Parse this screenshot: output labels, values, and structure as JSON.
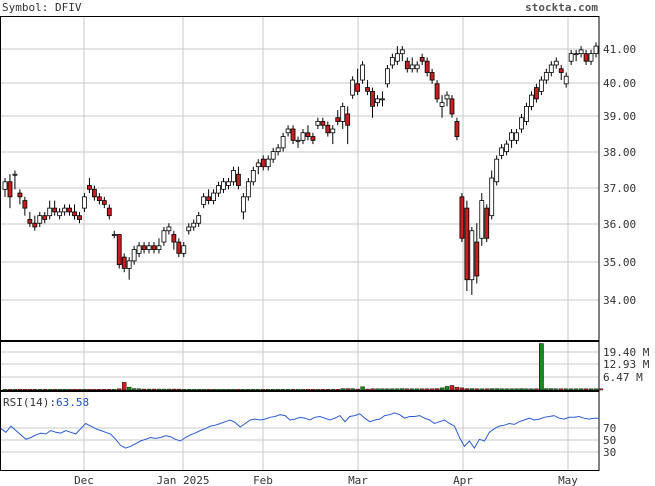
{
  "header": {
    "symbol_label": "Symbol: DFIV",
    "site": "stockta.com"
  },
  "rsi": {
    "label": "RSI(14):",
    "value": "63.58",
    "ticks": [
      "70",
      "50",
      "30"
    ]
  },
  "volume": {
    "ticks": [
      "19.40 M",
      "12.93 M",
      "6.47 M"
    ]
  },
  "colors": {
    "up": "#ffffff",
    "down": "#c81e1e",
    "vol_up": "#1a8a1a",
    "rsi_line": "#2a5bd7",
    "grid": "#c8c8c8"
  },
  "chart_data": {
    "type": "candlestick",
    "x_ticks": [
      "Dec",
      "Jan 2025",
      "Feb",
      "Mar",
      "Apr",
      "May"
    ],
    "y_ticks": [
      "41.00",
      "40.00",
      "39.00",
      "38.00",
      "37.00",
      "36.00",
      "35.00",
      "34.00"
    ],
    "ylim": [
      33.0,
      41.6
    ],
    "candles": [
      [
        37.0,
        37.3,
        36.8,
        37.2
      ],
      [
        37.2,
        37.4,
        36.5,
        36.8
      ],
      [
        37.4,
        37.5,
        37.0,
        37.4
      ],
      [
        36.9,
        37.0,
        36.6,
        36.8
      ],
      [
        36.7,
        36.8,
        36.3,
        36.5
      ],
      [
        36.2,
        36.4,
        36.0,
        36.1
      ],
      [
        36.1,
        36.3,
        35.9,
        36.0
      ],
      [
        36.1,
        36.4,
        36.0,
        36.3
      ],
      [
        36.3,
        36.4,
        36.1,
        36.2
      ],
      [
        36.3,
        36.7,
        36.2,
        36.5
      ],
      [
        36.5,
        36.7,
        36.3,
        36.4
      ],
      [
        36.3,
        36.5,
        36.2,
        36.4
      ],
      [
        36.4,
        36.6,
        36.3,
        36.5
      ],
      [
        36.5,
        36.6,
        36.3,
        36.4
      ],
      [
        36.4,
        36.6,
        36.2,
        36.3
      ],
      [
        36.3,
        36.4,
        36.1,
        36.2
      ],
      [
        36.5,
        36.9,
        36.4,
        36.8
      ],
      [
        37.1,
        37.3,
        36.9,
        37.0
      ],
      [
        37.0,
        37.1,
        36.7,
        36.8
      ],
      [
        36.8,
        36.9,
        36.6,
        36.7
      ],
      [
        36.7,
        36.8,
        36.5,
        36.6
      ],
      [
        36.5,
        36.6,
        36.2,
        36.3
      ],
      [
        35.8,
        35.9,
        35.7,
        35.8
      ],
      [
        35.8,
        35.8,
        34.9,
        35.0
      ],
      [
        35.2,
        35.3,
        34.8,
        34.9
      ],
      [
        34.9,
        35.2,
        34.6,
        35.1
      ],
      [
        35.1,
        35.5,
        35.0,
        35.4
      ],
      [
        35.3,
        35.6,
        35.2,
        35.5
      ],
      [
        35.5,
        35.6,
        35.3,
        35.4
      ],
      [
        35.4,
        35.6,
        35.3,
        35.5
      ],
      [
        35.5,
        35.6,
        35.3,
        35.4
      ],
      [
        35.4,
        35.7,
        35.3,
        35.5
      ],
      [
        35.6,
        36.0,
        35.5,
        35.9
      ],
      [
        35.9,
        36.1,
        35.8,
        36.0
      ],
      [
        35.8,
        35.9,
        35.4,
        35.6
      ],
      [
        35.6,
        35.7,
        35.2,
        35.3
      ],
      [
        35.3,
        35.6,
        35.2,
        35.5
      ],
      [
        35.9,
        36.1,
        35.8,
        36.0
      ],
      [
        36.0,
        36.2,
        35.9,
        36.1
      ],
      [
        36.1,
        36.4,
        36.0,
        36.3
      ],
      [
        36.6,
        36.9,
        36.5,
        36.8
      ],
      [
        36.8,
        37.0,
        36.6,
        36.7
      ],
      [
        36.7,
        37.0,
        36.6,
        36.9
      ],
      [
        36.9,
        37.2,
        36.8,
        37.1
      ],
      [
        37.0,
        37.3,
        36.9,
        37.2
      ],
      [
        37.1,
        37.3,
        37.0,
        37.2
      ],
      [
        37.2,
        37.6,
        37.1,
        37.5
      ],
      [
        37.4,
        37.6,
        37.0,
        37.1
      ],
      [
        36.4,
        36.9,
        36.2,
        36.8
      ],
      [
        36.8,
        37.3,
        36.7,
        37.2
      ],
      [
        37.2,
        37.6,
        37.1,
        37.5
      ],
      [
        37.6,
        37.8,
        37.4,
        37.7
      ],
      [
        37.8,
        37.9,
        37.5,
        37.6
      ],
      [
        37.6,
        37.9,
        37.5,
        37.8
      ],
      [
        37.8,
        38.1,
        37.7,
        38.0
      ],
      [
        38.0,
        38.2,
        37.9,
        38.1
      ],
      [
        38.1,
        38.5,
        38.0,
        38.4
      ],
      [
        38.5,
        38.7,
        38.4,
        38.6
      ],
      [
        38.6,
        38.7,
        38.2,
        38.3
      ],
      [
        38.3,
        38.4,
        38.1,
        38.3
      ],
      [
        38.3,
        38.6,
        38.2,
        38.5
      ],
      [
        38.5,
        38.7,
        38.3,
        38.4
      ],
      [
        38.4,
        38.5,
        38.2,
        38.3
      ],
      [
        38.7,
        38.9,
        38.6,
        38.8
      ],
      [
        38.8,
        38.9,
        38.6,
        38.7
      ],
      [
        38.7,
        38.8,
        38.4,
        38.5
      ],
      [
        38.5,
        38.7,
        38.2,
        38.6
      ],
      [
        38.9,
        39.1,
        38.7,
        38.8
      ],
      [
        38.8,
        39.3,
        38.6,
        39.2
      ],
      [
        39.0,
        39.2,
        38.2,
        38.7
      ],
      [
        39.5,
        40.0,
        39.4,
        39.9
      ],
      [
        39.8,
        40.2,
        39.5,
        39.6
      ],
      [
        39.9,
        40.4,
        39.8,
        40.3
      ],
      [
        39.7,
        39.9,
        39.5,
        39.6
      ],
      [
        39.6,
        39.7,
        38.9,
        39.2
      ],
      [
        39.3,
        39.5,
        39.2,
        39.4
      ],
      [
        39.4,
        39.6,
        39.2,
        39.4
      ],
      [
        39.8,
        40.3,
        39.7,
        40.2
      ],
      [
        40.3,
        40.6,
        40.2,
        40.5
      ],
      [
        40.4,
        40.8,
        40.3,
        40.6
      ],
      [
        40.6,
        40.8,
        40.4,
        40.7
      ],
      [
        40.4,
        40.5,
        40.1,
        40.2
      ],
      [
        40.2,
        40.5,
        40.1,
        40.3
      ],
      [
        40.2,
        40.4,
        40.1,
        40.3
      ],
      [
        40.5,
        40.6,
        40.3,
        40.4
      ],
      [
        40.4,
        40.5,
        40.0,
        40.1
      ],
      [
        40.1,
        40.2,
        39.8,
        39.9
      ],
      [
        39.8,
        39.9,
        39.3,
        39.4
      ],
      [
        39.2,
        39.5,
        38.9,
        39.3
      ],
      [
        39.4,
        39.6,
        39.2,
        39.5
      ],
      [
        39.4,
        39.5,
        38.9,
        39.0
      ],
      [
        38.8,
        38.9,
        38.3,
        38.4
      ],
      [
        36.8,
        36.9,
        35.6,
        35.7
      ],
      [
        36.5,
        36.7,
        34.3,
        34.6
      ],
      [
        34.6,
        36.0,
        34.2,
        35.9
      ],
      [
        35.6,
        36.1,
        34.5,
        34.7
      ],
      [
        35.7,
        36.9,
        35.5,
        36.7
      ],
      [
        36.5,
        36.6,
        35.6,
        35.7
      ],
      [
        36.3,
        37.5,
        36.2,
        37.3
      ],
      [
        37.2,
        37.9,
        37.1,
        37.8
      ],
      [
        37.9,
        38.2,
        37.8,
        38.1
      ],
      [
        38.0,
        38.3,
        37.9,
        38.2
      ],
      [
        38.3,
        38.6,
        38.1,
        38.5
      ],
      [
        38.3,
        38.6,
        38.2,
        38.5
      ],
      [
        38.6,
        39.0,
        38.5,
        38.9
      ],
      [
        38.8,
        39.3,
        38.7,
        39.2
      ],
      [
        39.2,
        39.6,
        39.1,
        39.5
      ],
      [
        39.7,
        39.8,
        39.3,
        39.4
      ],
      [
        39.6,
        40.0,
        39.5,
        39.9
      ],
      [
        39.9,
        40.2,
        39.8,
        40.1
      ],
      [
        40.1,
        40.4,
        40.0,
        40.3
      ],
      [
        40.3,
        40.5,
        40.2,
        40.4
      ],
      [
        40.2,
        40.3,
        39.9,
        40.1
      ],
      [
        39.8,
        40.1,
        39.7,
        40.0
      ],
      [
        40.4,
        40.7,
        40.3,
        40.6
      ],
      [
        40.6,
        40.7,
        40.4,
        40.6
      ],
      [
        40.6,
        40.8,
        40.5,
        40.7
      ],
      [
        40.6,
        40.7,
        40.3,
        40.4
      ],
      [
        40.4,
        40.7,
        40.3,
        40.6
      ],
      [
        40.6,
        40.9,
        40.5,
        40.8
      ]
    ],
    "volumes": [
      0.3,
      0.3,
      0.3,
      0.35,
      0.3,
      0.3,
      0.3,
      0.3,
      0.3,
      0.3,
      0.35,
      0.3,
      0.3,
      0.3,
      0.3,
      0.3,
      0.3,
      0.3,
      0.3,
      0.3,
      0.3,
      0.3,
      0.3,
      0.5,
      3.2,
      1.2,
      0.6,
      0.5,
      0.4,
      0.4,
      0.4,
      0.4,
      0.4,
      0.4,
      0.4,
      0.4,
      0.3,
      0.3,
      0.3,
      0.3,
      0.3,
      0.3,
      0.3,
      0.3,
      0.3,
      0.3,
      0.3,
      0.3,
      0.3,
      0.3,
      0.3,
      0.3,
      0.3,
      0.3,
      0.3,
      0.3,
      0.3,
      0.3,
      0.3,
      0.3,
      0.3,
      0.3,
      0.3,
      0.3,
      0.3,
      0.3,
      0.3,
      0.3,
      0.6,
      0.6,
      0.6,
      0.4,
      1.4,
      0.4,
      0.5,
      0.5,
      0.5,
      0.5,
      0.5,
      0.5,
      0.6,
      0.5,
      0.5,
      0.5,
      0.5,
      0.5,
      0.5,
      0.6,
      0.9,
      1.5,
      1.9,
      1.2,
      0.9,
      0.6,
      0.6,
      0.5,
      0.5,
      0.5,
      0.6,
      0.6,
      0.5,
      0.5,
      0.5,
      0.5,
      0.6,
      0.5,
      0.5,
      0.5,
      0.6,
      0.6,
      0.6,
      0.5,
      0.5,
      0.5,
      0.5,
      0.5,
      0.5,
      0.5,
      0.5,
      0.5,
      0.5
    ],
    "volume_spike": {
      "index": 108,
      "value": 19.4
    },
    "volume_ylim": [
      0,
      20.5
    ],
    "rsi_values": [
      52,
      48,
      55,
      50,
      45,
      40,
      42,
      45,
      47,
      46,
      50,
      48,
      47,
      50,
      48,
      46,
      52,
      58,
      55,
      52,
      50,
      48,
      46,
      40,
      33,
      30,
      32,
      35,
      38,
      40,
      42,
      41,
      42,
      44,
      43,
      40,
      38,
      42,
      45,
      47,
      50,
      52,
      55,
      56,
      58,
      60,
      62,
      59,
      54,
      58,
      62,
      63,
      62,
      63,
      65,
      66,
      68,
      67,
      62,
      63,
      65,
      64,
      62,
      65,
      66,
      64,
      62,
      64,
      67,
      60,
      66,
      67,
      69,
      64,
      60,
      62,
      63,
      67,
      68,
      70,
      68,
      64,
      66,
      66,
      67,
      64,
      62,
      58,
      60,
      62,
      58,
      55,
      42,
      32,
      38,
      30,
      40,
      38,
      48,
      52,
      55,
      56,
      58,
      57,
      60,
      62,
      64,
      62,
      63,
      65,
      66,
      67,
      64,
      63,
      65,
      65,
      66,
      64,
      63,
      64,
      64
    ],
    "rsi_ylim": [
      5,
      95
    ]
  }
}
